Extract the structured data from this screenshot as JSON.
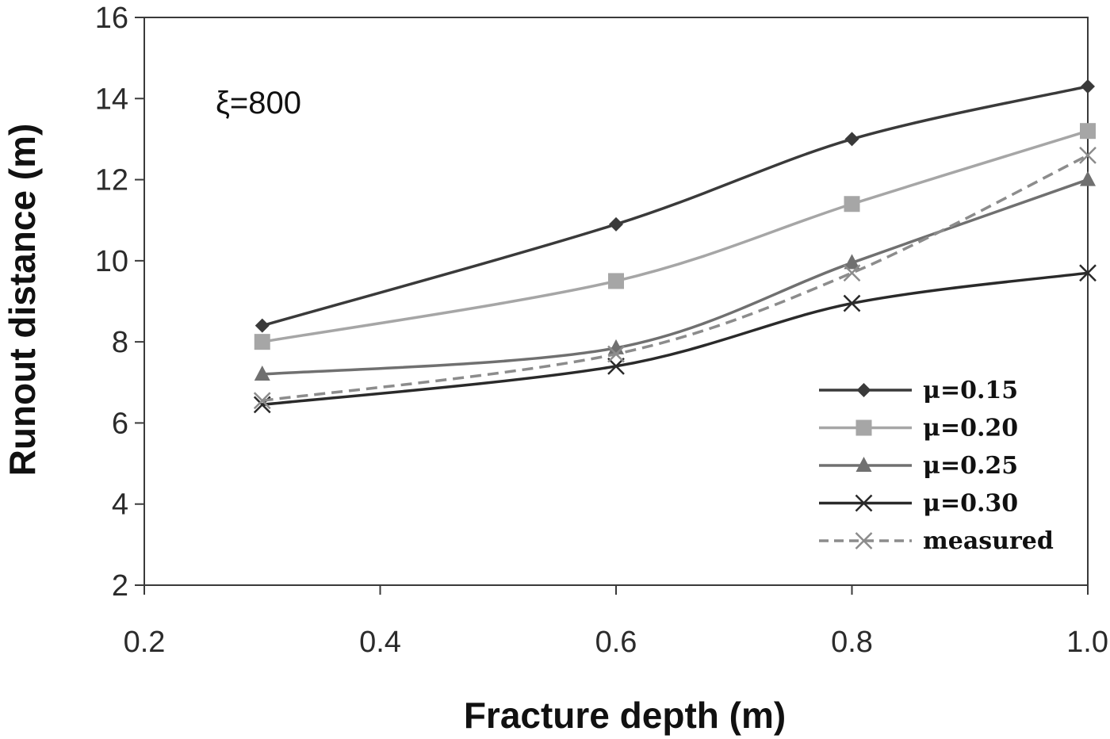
{
  "chart_data": {
    "type": "line",
    "xlabel": "Fracture depth (m)",
    "ylabel": "Runout distance (m)",
    "annotation": "ξ=800",
    "xlim": [
      0.2,
      1.0
    ],
    "ylim": [
      2,
      16
    ],
    "xticks": [
      "0.2",
      "0.4",
      "0.6",
      "0.8",
      "1.0"
    ],
    "yticks": [
      "2",
      "4",
      "6",
      "8",
      "10",
      "12",
      "14",
      "16"
    ],
    "grid": false,
    "legend_position": "bottom-right",
    "x": [
      0.3,
      0.6,
      0.8,
      1.0
    ],
    "series": [
      {
        "name": "μ=0.15",
        "values": [
          8.4,
          10.9,
          13.0,
          14.3
        ],
        "color": "#3a3a3a",
        "marker": "diamond",
        "dash": false
      },
      {
        "name": "μ=0.20",
        "values": [
          8.0,
          9.5,
          11.4,
          13.2
        ],
        "color": "#a6a6a6",
        "marker": "square",
        "dash": false
      },
      {
        "name": "μ=0.25",
        "values": [
          7.2,
          7.85,
          9.95,
          12.0
        ],
        "color": "#707070",
        "marker": "triangle",
        "dash": false
      },
      {
        "name": "μ=0.30",
        "values": [
          6.45,
          7.4,
          8.95,
          9.7
        ],
        "color": "#2a2a2a",
        "marker": "x",
        "dash": false
      },
      {
        "name": "measured",
        "values": [
          6.55,
          7.7,
          9.7,
          12.6
        ],
        "color": "#8c8c8c",
        "marker": "x",
        "dash": true
      }
    ]
  }
}
